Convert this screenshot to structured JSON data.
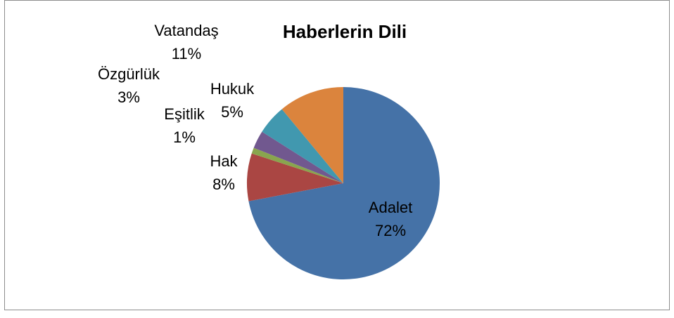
{
  "chart_data": {
    "type": "pie",
    "title": "Haberlerin Dili",
    "categories": [
      "Adalet",
      "Hak",
      "Eşitlik",
      "Özgürlük",
      "Hukuk",
      "Vatandaş"
    ],
    "values": [
      72,
      8,
      1,
      3,
      5,
      11
    ],
    "value_labels": [
      "72%",
      "8%",
      "1%",
      "3%",
      "5%",
      "11%"
    ],
    "colors": [
      "#4572a7",
      "#aa4643",
      "#89a54e",
      "#71588f",
      "#4198af",
      "#db843d"
    ]
  }
}
